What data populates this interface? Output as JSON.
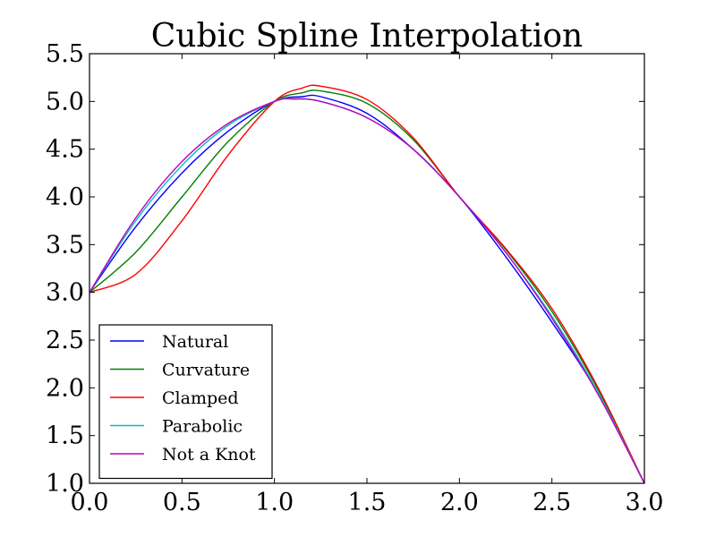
{
  "chart_data": {
    "type": "line",
    "title": "Cubic Spline Interpolation",
    "xlabel": "",
    "ylabel": "",
    "xlim": [
      0.0,
      3.0
    ],
    "ylim": [
      1.0,
      5.5
    ],
    "xticks": [
      "0.0",
      "0.5",
      "1.0",
      "1.5",
      "2.0",
      "2.5",
      "3.0"
    ],
    "yticks": [
      "1.0",
      "1.5",
      "2.0",
      "2.5",
      "3.0",
      "3.5",
      "4.0",
      "4.5",
      "5.0",
      "5.5"
    ],
    "grid": false,
    "legend_position": "lower-left",
    "knots": {
      "x": [
        0,
        1,
        2,
        3
      ],
      "y": [
        3,
        5,
        4,
        1
      ]
    },
    "series": [
      {
        "name": "Natural",
        "color": "#0000ff",
        "x": [
          0,
          0.25,
          0.5,
          0.75,
          1,
          1.15,
          1.25,
          1.5,
          1.75,
          2,
          2.25,
          2.5,
          2.75,
          3
        ],
        "y": [
          3.0,
          3.687,
          4.25,
          4.688,
          5.0,
          5.05,
          5.05,
          4.875,
          4.5,
          4.0,
          3.375,
          2.688,
          1.938,
          1.0
        ]
      },
      {
        "name": "Curvature",
        "color": "#008000",
        "x": [
          0,
          0.25,
          0.5,
          0.75,
          1,
          1.15,
          1.25,
          1.5,
          1.75,
          2,
          2.25,
          2.5,
          2.75,
          3
        ],
        "y": [
          3.0,
          3.42,
          4.0,
          4.58,
          5.0,
          5.09,
          5.11,
          4.98,
          4.6,
          4.0,
          3.45,
          2.8,
          1.98,
          1.0
        ]
      },
      {
        "name": "Clamped",
        "color": "#ff0000",
        "x": [
          0,
          0.25,
          0.5,
          0.75,
          1,
          1.15,
          1.25,
          1.5,
          1.75,
          2,
          2.25,
          2.5,
          2.75,
          3
        ],
        "y": [
          3.0,
          3.19,
          3.75,
          4.44,
          5.0,
          5.14,
          5.16,
          5.02,
          4.62,
          4.0,
          3.46,
          2.83,
          2.0,
          1.0
        ]
      },
      {
        "name": "Parabolic",
        "color": "#00bfbf",
        "x": [
          0,
          0.25,
          0.5,
          0.75,
          1,
          1.1,
          1.25,
          1.5,
          1.75,
          2,
          2.25,
          2.5,
          2.75,
          3
        ],
        "y": [
          3.0,
          3.75,
          4.33,
          4.75,
          5.0,
          5.03,
          5.0,
          4.83,
          4.5,
          4.0,
          3.42,
          2.75,
          1.95,
          1.0
        ]
      },
      {
        "name": "Not a Knot",
        "color": "#bf00bf",
        "x": [
          0,
          0.25,
          0.5,
          0.75,
          1,
          1.1,
          1.25,
          1.5,
          1.75,
          2,
          2.25,
          2.5,
          2.75,
          3
        ],
        "y": [
          3.0,
          3.78,
          4.37,
          4.77,
          5.0,
          5.025,
          5.0,
          4.83,
          4.5,
          4.0,
          3.42,
          2.73,
          1.93,
          1.0
        ]
      }
    ]
  }
}
